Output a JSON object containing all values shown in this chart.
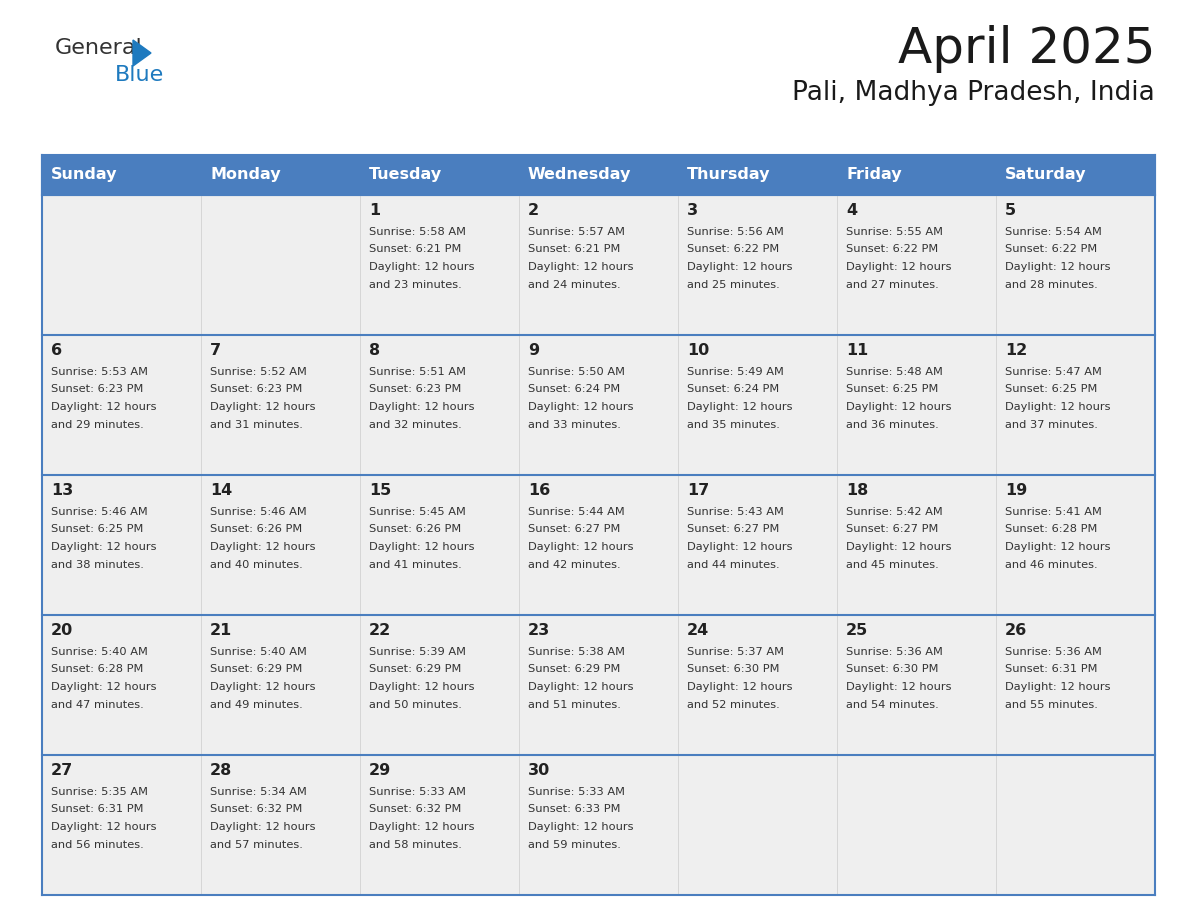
{
  "title": "April 2025",
  "subtitle": "Pali, Madhya Pradesh, India",
  "header_bg": "#4a7ebf",
  "header_text_color": "#FFFFFF",
  "day_names": [
    "Sunday",
    "Monday",
    "Tuesday",
    "Wednesday",
    "Thursday",
    "Friday",
    "Saturday"
  ],
  "bg_color": "#FFFFFF",
  "cell_bg": "#EFEFEF",
  "border_color": "#4a7ebf",
  "text_color": "#333333",
  "day_num_color": "#222222",
  "weeks": [
    [
      {
        "day": "",
        "sunrise": "",
        "sunset": "",
        "daylight": ""
      },
      {
        "day": "",
        "sunrise": "",
        "sunset": "",
        "daylight": ""
      },
      {
        "day": "1",
        "sunrise": "5:58 AM",
        "sunset": "6:21 PM",
        "daylight": "and 23 minutes."
      },
      {
        "day": "2",
        "sunrise": "5:57 AM",
        "sunset": "6:21 PM",
        "daylight": "and 24 minutes."
      },
      {
        "day": "3",
        "sunrise": "5:56 AM",
        "sunset": "6:22 PM",
        "daylight": "and 25 minutes."
      },
      {
        "day": "4",
        "sunrise": "5:55 AM",
        "sunset": "6:22 PM",
        "daylight": "and 27 minutes."
      },
      {
        "day": "5",
        "sunrise": "5:54 AM",
        "sunset": "6:22 PM",
        "daylight": "and 28 minutes."
      }
    ],
    [
      {
        "day": "6",
        "sunrise": "5:53 AM",
        "sunset": "6:23 PM",
        "daylight": "and 29 minutes."
      },
      {
        "day": "7",
        "sunrise": "5:52 AM",
        "sunset": "6:23 PM",
        "daylight": "and 31 minutes."
      },
      {
        "day": "8",
        "sunrise": "5:51 AM",
        "sunset": "6:23 PM",
        "daylight": "and 32 minutes."
      },
      {
        "day": "9",
        "sunrise": "5:50 AM",
        "sunset": "6:24 PM",
        "daylight": "and 33 minutes."
      },
      {
        "day": "10",
        "sunrise": "5:49 AM",
        "sunset": "6:24 PM",
        "daylight": "and 35 minutes."
      },
      {
        "day": "11",
        "sunrise": "5:48 AM",
        "sunset": "6:25 PM",
        "daylight": "and 36 minutes."
      },
      {
        "day": "12",
        "sunrise": "5:47 AM",
        "sunset": "6:25 PM",
        "daylight": "and 37 minutes."
      }
    ],
    [
      {
        "day": "13",
        "sunrise": "5:46 AM",
        "sunset": "6:25 PM",
        "daylight": "and 38 minutes."
      },
      {
        "day": "14",
        "sunrise": "5:46 AM",
        "sunset": "6:26 PM",
        "daylight": "and 40 minutes."
      },
      {
        "day": "15",
        "sunrise": "5:45 AM",
        "sunset": "6:26 PM",
        "daylight": "and 41 minutes."
      },
      {
        "day": "16",
        "sunrise": "5:44 AM",
        "sunset": "6:27 PM",
        "daylight": "and 42 minutes."
      },
      {
        "day": "17",
        "sunrise": "5:43 AM",
        "sunset": "6:27 PM",
        "daylight": "and 44 minutes."
      },
      {
        "day": "18",
        "sunrise": "5:42 AM",
        "sunset": "6:27 PM",
        "daylight": "and 45 minutes."
      },
      {
        "day": "19",
        "sunrise": "5:41 AM",
        "sunset": "6:28 PM",
        "daylight": "and 46 minutes."
      }
    ],
    [
      {
        "day": "20",
        "sunrise": "5:40 AM",
        "sunset": "6:28 PM",
        "daylight": "and 47 minutes."
      },
      {
        "day": "21",
        "sunrise": "5:40 AM",
        "sunset": "6:29 PM",
        "daylight": "and 49 minutes."
      },
      {
        "day": "22",
        "sunrise": "5:39 AM",
        "sunset": "6:29 PM",
        "daylight": "and 50 minutes."
      },
      {
        "day": "23",
        "sunrise": "5:38 AM",
        "sunset": "6:29 PM",
        "daylight": "and 51 minutes."
      },
      {
        "day": "24",
        "sunrise": "5:37 AM",
        "sunset": "6:30 PM",
        "daylight": "and 52 minutes."
      },
      {
        "day": "25",
        "sunrise": "5:36 AM",
        "sunset": "6:30 PM",
        "daylight": "and 54 minutes."
      },
      {
        "day": "26",
        "sunrise": "5:36 AM",
        "sunset": "6:31 PM",
        "daylight": "and 55 minutes."
      }
    ],
    [
      {
        "day": "27",
        "sunrise": "5:35 AM",
        "sunset": "6:31 PM",
        "daylight": "and 56 minutes."
      },
      {
        "day": "28",
        "sunrise": "5:34 AM",
        "sunset": "6:32 PM",
        "daylight": "and 57 minutes."
      },
      {
        "day": "29",
        "sunrise": "5:33 AM",
        "sunset": "6:32 PM",
        "daylight": "and 58 minutes."
      },
      {
        "day": "30",
        "sunrise": "5:33 AM",
        "sunset": "6:33 PM",
        "daylight": "and 59 minutes."
      },
      {
        "day": "",
        "sunrise": "",
        "sunset": "",
        "daylight": ""
      },
      {
        "day": "",
        "sunrise": "",
        "sunset": "",
        "daylight": ""
      },
      {
        "day": "",
        "sunrise": "",
        "sunset": "",
        "daylight": ""
      }
    ]
  ],
  "logo_text1": "General",
  "logo_text2": "Blue",
  "logo_color1": "#333333",
  "logo_color2": "#1e7abf",
  "logo_tri_color": "#1e7abf"
}
